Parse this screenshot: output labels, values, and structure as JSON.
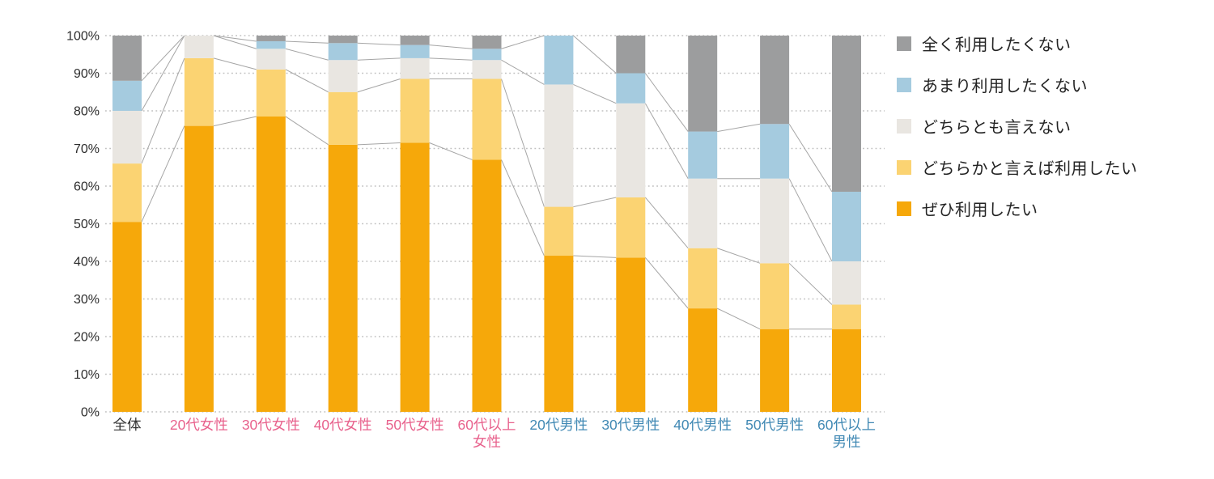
{
  "page": {
    "background": "#ffffff",
    "title": ""
  },
  "legend": {
    "position": "right",
    "items": [
      {
        "label": "全く利用したくない",
        "color": "#9c9d9e"
      },
      {
        "label": "あまり利用したくない",
        "color": "#a5cbdf"
      },
      {
        "label": "どちらとも言えない",
        "color": "#e9e6e1"
      },
      {
        "label": "どちらかと言えば利用したい",
        "color": "#fbd372"
      },
      {
        "label": "ぜひ利用したい",
        "color": "#f6a80a"
      }
    ]
  },
  "chart_data": {
    "type": "bar",
    "subtype": "stacked-percent-column",
    "title": "",
    "xlabel": "",
    "ylabel": "",
    "ylim": [
      0,
      100
    ],
    "y_ticks": [
      "100%",
      "90%",
      "80%",
      "70%",
      "60%",
      "50%",
      "40%",
      "30%",
      "20%",
      "10%",
      "0%"
    ],
    "grid": "dotted-horizontal",
    "legend_position": "right",
    "connector_lines": true,
    "axis_label_color": "#2d2d2d",
    "grid_color": "#c0c0c0",
    "connector_color": "#a5a5a5",
    "categories": [
      {
        "label": "全体",
        "color": "#333333"
      },
      {
        "label": "20代女性",
        "color": "#e8618c"
      },
      {
        "label": "30代女性",
        "color": "#e8618c"
      },
      {
        "label": "40代女性",
        "color": "#e8618c"
      },
      {
        "label": "50代女性",
        "color": "#e8618c"
      },
      {
        "label": "60代以上\n女性",
        "color": "#e8618c"
      },
      {
        "label": "20代男性",
        "color": "#4189b4"
      },
      {
        "label": "30代男性",
        "color": "#4189b4"
      },
      {
        "label": "40代男性",
        "color": "#4189b4"
      },
      {
        "label": "50代男性",
        "color": "#4189b4"
      },
      {
        "label": "60代以上\n男性",
        "color": "#4189b4"
      }
    ],
    "series": [
      {
        "name": "ぜひ利用したい",
        "color": "#f6a80a",
        "values": [
          50.5,
          76,
          78.5,
          71,
          71.5,
          67,
          41.5,
          41,
          27.5,
          22,
          22
        ]
      },
      {
        "name": "どちらかと言えば利用したい",
        "color": "#fbd372",
        "values": [
          15.5,
          18,
          12.5,
          14,
          17,
          21.5,
          13,
          16,
          16,
          17.5,
          6.5
        ]
      },
      {
        "name": "どちらとも言えない",
        "color": "#e9e6e1",
        "values": [
          14,
          6,
          5.5,
          8.5,
          5.5,
          5,
          32.5,
          25,
          18.5,
          22.5,
          11.5
        ]
      },
      {
        "name": "あまり利用したくない",
        "color": "#a5cbdf",
        "values": [
          8,
          0,
          2,
          4.5,
          3.5,
          3,
          13,
          8,
          12.5,
          14.5,
          18.5
        ]
      },
      {
        "name": "全く利用したくない",
        "color": "#9c9d9e",
        "values": [
          12,
          0,
          1.5,
          2,
          2.5,
          3.5,
          0,
          10,
          25.5,
          23.5,
          41.5
        ]
      }
    ]
  }
}
